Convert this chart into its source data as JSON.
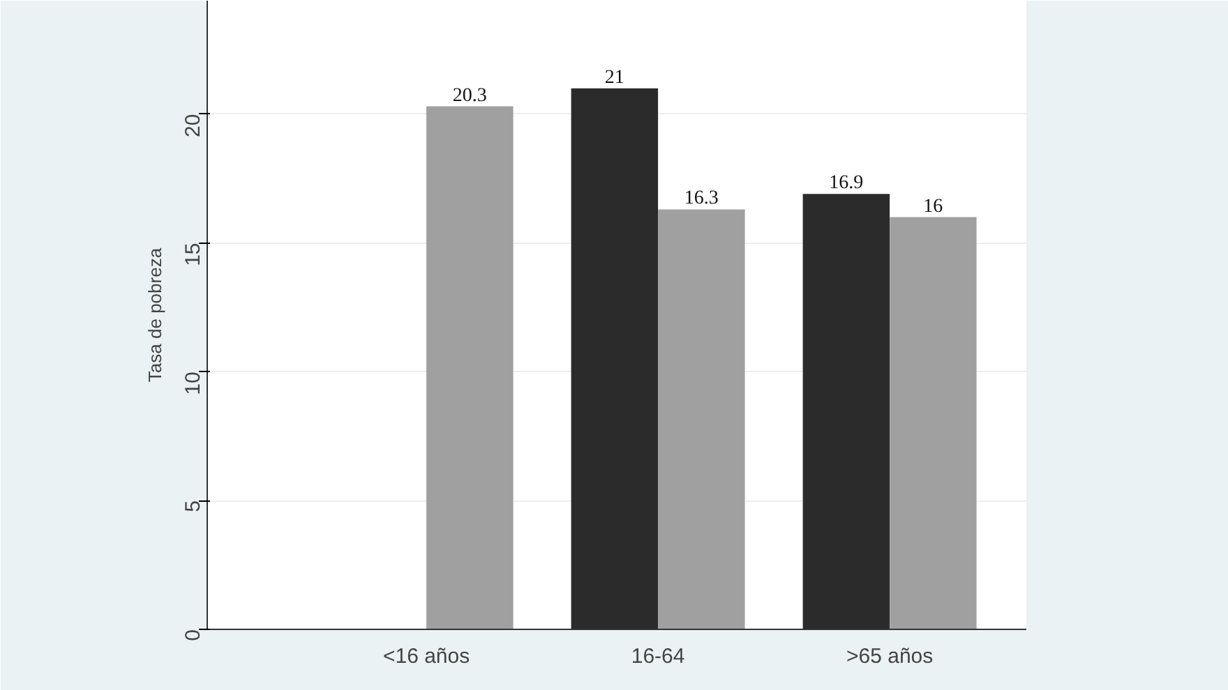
{
  "chart_data": {
    "type": "bar",
    "ylabel": "Tasa de pobreza",
    "categories": [
      "<16 años",
      "16-64",
      ">65 años"
    ],
    "series": [
      {
        "color": "#2b2b2b",
        "values": [
          null,
          21,
          16.9
        ],
        "value_labels": [
          null,
          "21",
          "16.9"
        ]
      },
      {
        "color": "#a0a0a0",
        "values": [
          20.3,
          16.3,
          16
        ],
        "value_labels": [
          "20.3",
          "16.3",
          "16"
        ]
      }
    ],
    "ylim": [
      0,
      24.4
    ],
    "yticks": [
      0,
      5,
      10,
      15,
      20
    ],
    "grid": "y"
  }
}
